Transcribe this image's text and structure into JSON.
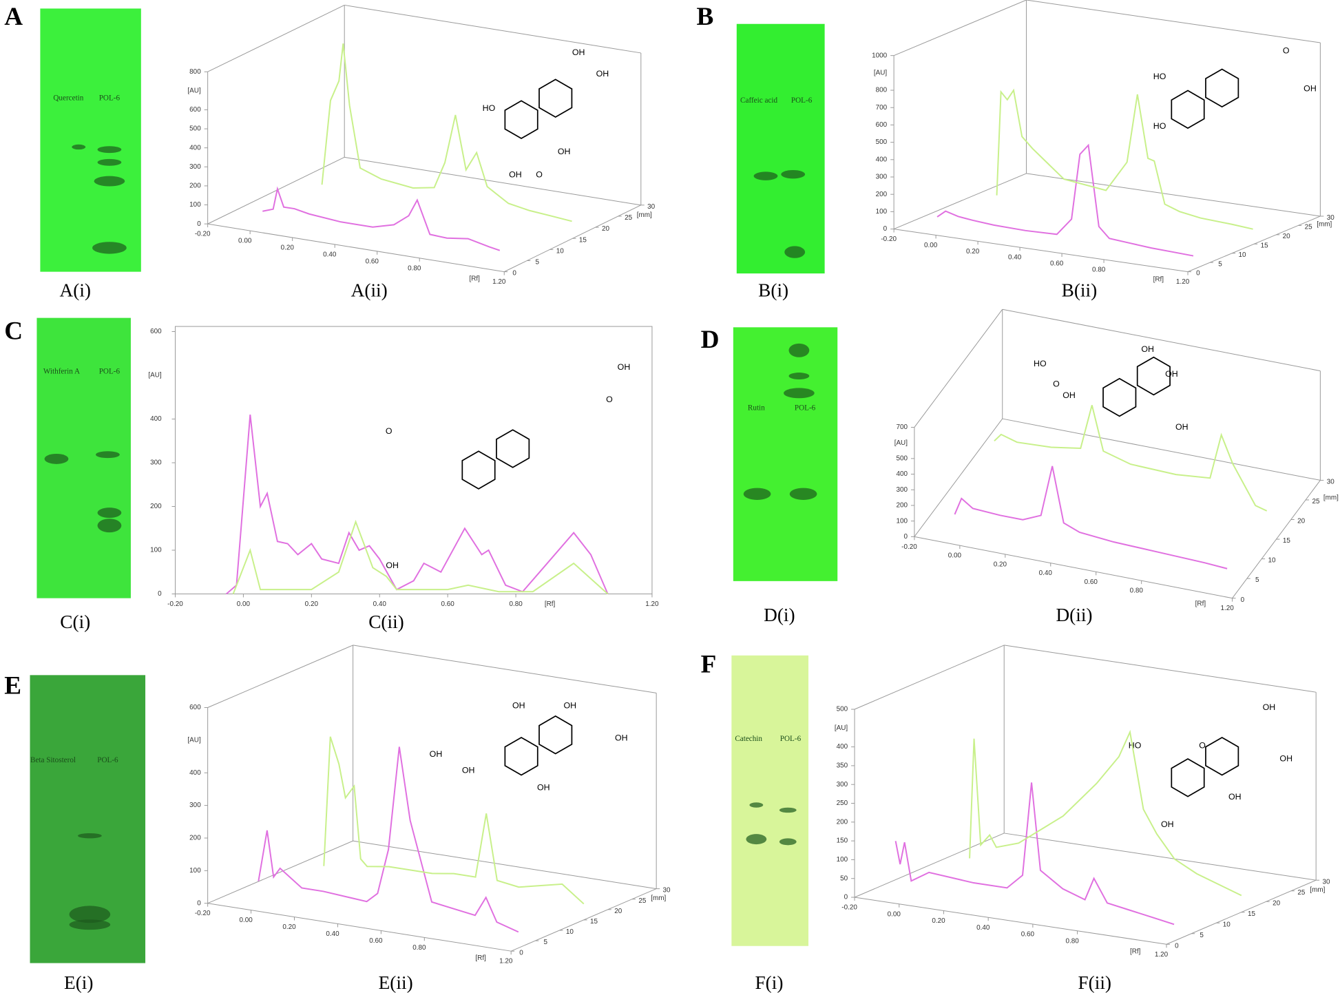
{
  "panels": [
    {
      "letter": "A",
      "plate": {
        "caption": "A(i)",
        "lanes": [
          "Quercetin",
          "POL-6"
        ]
      },
      "chart": {
        "caption": "A(ii)",
        "type": "3d",
        "yunit": "[AU]",
        "xunit": "[Rf]",
        "zunit": "[mm]",
        "ylim": [
          0,
          800
        ],
        "yticks": [
          0,
          100,
          200,
          300,
          400,
          500,
          600,
          800
        ],
        "xlim": [
          -0.2,
          1.2
        ],
        "xticks": [
          {
            "value": -0.2,
            "label": "-0.20"
          },
          {
            "value": 0,
            "label": "0.00"
          },
          {
            "value": 0.2,
            "label": "0.20"
          },
          {
            "value": 0.4,
            "label": "0.40"
          },
          {
            "value": 0.6,
            "label": "0.60"
          },
          {
            "value": 0.8,
            "label": "0.80"
          },
          {
            "value": 1.2,
            "label": "1.20"
          }
        ],
        "zlim": [
          0,
          30
        ],
        "zticks": [
          0,
          5,
          10,
          15,
          20,
          25,
          30
        ],
        "series": [
          {
            "color": "#e070e0",
            "x": [
              -0.07,
              -0.02,
              0.0,
              0.03,
              0.08,
              0.15,
              0.3,
              0.45,
              0.55,
              0.62,
              0.66,
              0.72,
              0.8,
              0.9,
              1.0,
              1.05
            ],
            "y": [
              20,
              40,
              150,
              60,
              60,
              45,
              30,
              30,
              60,
              120,
              210,
              40,
              35,
              50,
              25,
              15
            ]
          },
          {
            "color": "#c8f08a",
            "x": [
              -0.08,
              -0.04,
              0.0,
              0.02,
              0.05,
              0.1,
              0.2,
              0.35,
              0.45,
              0.5,
              0.55,
              0.6,
              0.65,
              0.7,
              0.8,
              0.9,
              1.0,
              1.1
            ],
            "y": [
              0,
              450,
              560,
              760,
              440,
              120,
              80,
              60,
              80,
              220,
              480,
              200,
              300,
              130,
              60,
              40,
              30,
              20
            ]
          }
        ]
      },
      "structure_labels": [
        "OH",
        "OH",
        "HO",
        "OH",
        "OH",
        "O"
      ]
    },
    {
      "letter": "B",
      "plate": {
        "caption": "B(i)",
        "lanes": [
          "Caffeic acid",
          "POL-6"
        ]
      },
      "chart": {
        "caption": "B(ii)",
        "type": "3d",
        "yunit": "[AU]",
        "xunit": "[Rf]",
        "zunit": "[mm]",
        "ylim": [
          0,
          1000
        ],
        "yticks": [
          0,
          100,
          200,
          300,
          400,
          500,
          600,
          700,
          800,
          1000
        ],
        "xlim": [
          -0.2,
          1.2
        ],
        "xticks": [
          {
            "value": -0.2,
            "label": "-0.20"
          },
          {
            "value": 0,
            "label": "0.00"
          },
          {
            "value": 0.2,
            "label": "0.20"
          },
          {
            "value": 0.4,
            "label": "0.40"
          },
          {
            "value": 0.6,
            "label": "0.60"
          },
          {
            "value": 0.8,
            "label": "0.80"
          },
          {
            "value": 1.2,
            "label": "1.20"
          }
        ],
        "zlim": [
          0,
          30
        ],
        "zticks": [
          0,
          5,
          10,
          15,
          20,
          25,
          30
        ],
        "series": [
          {
            "color": "#e070e0",
            "x": [
              -0.12,
              -0.08,
              -0.02,
              0.05,
              0.15,
              0.3,
              0.45,
              0.52,
              0.56,
              0.6,
              0.65,
              0.7,
              0.8,
              0.9,
              1.0,
              1.1
            ],
            "y": [
              20,
              60,
              40,
              30,
              20,
              15,
              20,
              120,
              500,
              560,
              100,
              40,
              30,
              20,
              15,
              10
            ]
          },
          {
            "color": "#c8f08a",
            "x": [
              -0.12,
              -0.1,
              -0.07,
              -0.04,
              0.0,
              0.05,
              0.2,
              0.4,
              0.5,
              0.55,
              0.6,
              0.63,
              0.68,
              0.75,
              0.85,
              1.0,
              1.1
            ],
            "y": [
              0,
              600,
              560,
              620,
              360,
              300,
              150,
              120,
              300,
              700,
              340,
              330,
              90,
              60,
              40,
              30,
              20
            ]
          }
        ]
      },
      "structure_labels": [
        "HO",
        "HO",
        "O",
        "OH"
      ]
    },
    {
      "letter": "C",
      "plate": {
        "caption": "C(i)",
        "lanes": [
          "Withferin A",
          "POL-6"
        ]
      },
      "chart": {
        "caption": "C(ii)",
        "type": "2d",
        "yunit": "[AU]",
        "xunit": "[Rf]",
        "ylim": [
          0,
          600
        ],
        "yticks": [
          0,
          100,
          200,
          300,
          400,
          600
        ],
        "xlim": [
          -0.2,
          1.2
        ],
        "xticks": [
          {
            "value": -0.2,
            "label": "-0.20"
          },
          {
            "value": 0,
            "label": "0.00"
          },
          {
            "value": 0.2,
            "label": "0.20"
          },
          {
            "value": 0.4,
            "label": "0.40"
          },
          {
            "value": 0.6,
            "label": "0.60"
          },
          {
            "value": 0.8,
            "label": "0.80"
          },
          {
            "value": 1.2,
            "label": "1.20"
          }
        ],
        "series": [
          {
            "color": "#e070e0",
            "x": [
              -0.05,
              -0.02,
              0.02,
              0.05,
              0.07,
              0.1,
              0.13,
              0.16,
              0.2,
              0.23,
              0.28,
              0.31,
              0.34,
              0.37,
              0.4,
              0.45,
              0.5,
              0.53,
              0.58,
              0.65,
              0.7,
              0.72,
              0.77,
              0.82,
              0.87,
              0.97,
              1.02,
              1.07
            ],
            "y": [
              0,
              20,
              410,
              200,
              230,
              120,
              115,
              90,
              115,
              80,
              70,
              140,
              100,
              110,
              80,
              10,
              30,
              70,
              50,
              150,
              90,
              100,
              20,
              5,
              50,
              140,
              90,
              0
            ]
          },
          {
            "color": "#c8f08a",
            "x": [
              -0.03,
              0.02,
              0.05,
              0.2,
              0.28,
              0.33,
              0.38,
              0.42,
              0.45,
              0.6,
              0.66,
              0.75,
              0.85,
              0.97,
              1.07
            ],
            "y": [
              0,
              100,
              10,
              10,
              50,
              165,
              60,
              40,
              10,
              10,
              20,
              5,
              5,
              70,
              0
            ]
          }
        ]
      },
      "structure_labels": [
        "OH",
        "O",
        "O",
        "OH"
      ]
    },
    {
      "letter": "D",
      "plate": {
        "caption": "D(i)",
        "lanes": [
          "Rutin",
          "POL-6"
        ]
      },
      "chart": {
        "caption": "D(ii)",
        "type": "3d",
        "yunit": "[AU]",
        "xunit": "[Rf]",
        "zunit": "[mm]",
        "ylim": [
          0,
          700
        ],
        "yticks": [
          0,
          100,
          200,
          300,
          400,
          500,
          700
        ],
        "xlim": [
          -0.2,
          1.2
        ],
        "xticks": [
          {
            "value": -0.2,
            "label": "-0.20"
          },
          {
            "value": 0,
            "label": "0.00"
          },
          {
            "value": 0.2,
            "label": "0.20"
          },
          {
            "value": 0.4,
            "label": "0.40"
          },
          {
            "value": 0.6,
            "label": "0.60"
          },
          {
            "value": 0.8,
            "label": "0.80"
          },
          {
            "value": 1.2,
            "label": "1.20"
          }
        ],
        "zlim": [
          0,
          30
        ],
        "zticks": [
          0,
          5,
          10,
          15,
          20,
          25,
          30
        ],
        "series": [
          {
            "color": "#e070e0",
            "x": [
              -0.1,
              -0.07,
              -0.02,
              0.1,
              0.2,
              0.28,
              0.33,
              0.38,
              0.45,
              0.6,
              0.8,
              1.0,
              1.1
            ],
            "y": [
              20,
              130,
              80,
              70,
              70,
              120,
              450,
              100,
              60,
              40,
              30,
              20,
              10
            ]
          },
          {
            "color": "#c8f08a",
            "x": [
              -0.1,
              -0.07,
              0.0,
              0.15,
              0.28,
              0.33,
              0.38,
              0.5,
              0.7,
              0.85,
              0.9,
              0.95,
              1.05,
              1.1
            ],
            "y": [
              150,
              200,
              170,
              180,
              210,
              500,
              220,
              170,
              160,
              180,
              470,
              300,
              60,
              40
            ]
          }
        ]
      },
      "structure_labels": [
        "OH",
        "OH",
        "HO",
        "OH",
        "O",
        "OH"
      ]
    },
    {
      "letter": "E",
      "plate": {
        "caption": "E(i)",
        "lanes": [
          "Beta Sitosterol",
          "POL-6"
        ]
      },
      "chart": {
        "caption": "E(ii)",
        "type": "3d",
        "yunit": "[AU]",
        "xunit": "[Rf]",
        "zunit": "[mm]",
        "ylim": [
          0,
          600
        ],
        "yticks": [
          0,
          100,
          200,
          300,
          400,
          600
        ],
        "xlim": [
          -0.2,
          1.2
        ],
        "xticks": [
          {
            "value": -0.2,
            "label": "-0.20"
          },
          {
            "value": 0,
            "label": "0.00"
          },
          {
            "value": 0.2,
            "label": "0.20"
          },
          {
            "value": 0.4,
            "label": "0.40"
          },
          {
            "value": 0.6,
            "label": "0.60"
          },
          {
            "value": 0.8,
            "label": "0.80"
          },
          {
            "value": 1.2,
            "label": "1.20"
          }
        ],
        "zlim": [
          0,
          30
        ],
        "zticks": [
          0,
          5,
          10,
          15,
          20,
          25,
          30
        ],
        "series": [
          {
            "color": "#e070e0",
            "x": [
              -0.1,
              -0.06,
              -0.03,
              0.0,
              0.1,
              0.2,
              0.4,
              0.45,
              0.5,
              0.55,
              0.6,
              0.7,
              0.8,
              0.9,
              0.95,
              1.0,
              1.1
            ],
            "y": [
              40,
              200,
              60,
              90,
              40,
              40,
              30,
              60,
              200,
              520,
              300,
              60,
              50,
              40,
              100,
              30,
              10
            ]
          },
          {
            "color": "#c8f08a",
            "x": [
              -0.1,
              -0.07,
              -0.03,
              0.0,
              0.04,
              0.07,
              0.1,
              0.2,
              0.4,
              0.5,
              0.6,
              0.65,
              0.7,
              0.8,
              1.0,
              1.1
            ],
            "y": [
              0,
              400,
              320,
              220,
              260,
              40,
              20,
              30,
              30,
              40,
              40,
              240,
              40,
              30,
              60,
              10
            ]
          }
        ]
      },
      "structure_labels": [
        "OH",
        "OH",
        "OH",
        "OH",
        "OH",
        "OH"
      ]
    },
    {
      "letter": "F",
      "plate": {
        "caption": "F(i)",
        "lanes": [
          "Catechin",
          "POL-6"
        ]
      },
      "chart": {
        "caption": "F(ii)",
        "type": "3d",
        "yunit": "[AU]",
        "xunit": "[Rf]",
        "zunit": "[mm]",
        "ylim": [
          0,
          500
        ],
        "yticks": [
          0,
          50,
          100,
          150,
          200,
          250,
          300,
          350,
          400,
          500
        ],
        "xlim": [
          -0.2,
          1.2
        ],
        "xticks": [
          {
            "value": -0.2,
            "label": "-0.20"
          },
          {
            "value": 0,
            "label": "0.00"
          },
          {
            "value": 0.2,
            "label": "0.20"
          },
          {
            "value": 0.4,
            "label": "0.40"
          },
          {
            "value": 0.6,
            "label": "0.60"
          },
          {
            "value": 0.8,
            "label": "0.80"
          },
          {
            "value": 1.2,
            "label": "1.20"
          }
        ],
        "zlim": [
          0,
          30
        ],
        "zticks": [
          0,
          5,
          10,
          15,
          20,
          25,
          30
        ],
        "series": [
          {
            "color": "#e070e0",
            "x": [
              -0.15,
              -0.13,
              -0.11,
              -0.08,
              0.0,
              0.2,
              0.35,
              0.42,
              0.46,
              0.5,
              0.6,
              0.7,
              0.74,
              0.8,
              0.9,
              1.0,
              1.1
            ],
            "y": [
              120,
              60,
              120,
              20,
              50,
              40,
              40,
              80,
              330,
              100,
              60,
              40,
              100,
              40,
              30,
              20,
              10
            ]
          },
          {
            "color": "#c8f08a",
            "x": [
              -0.12,
              -0.1,
              -0.07,
              -0.03,
              0.0,
              0.1,
              0.3,
              0.45,
              0.55,
              0.6,
              0.66,
              0.72,
              0.8,
              0.9,
              1.0,
              1.1
            ],
            "y": [
              0,
              320,
              40,
              70,
              40,
              60,
              150,
              250,
              330,
              400,
              200,
              140,
              80,
              50,
              30,
              10
            ]
          }
        ]
      },
      "structure_labels": [
        "OH",
        "OH",
        "HO",
        "OH",
        "OH",
        "O"
      ]
    }
  ]
}
